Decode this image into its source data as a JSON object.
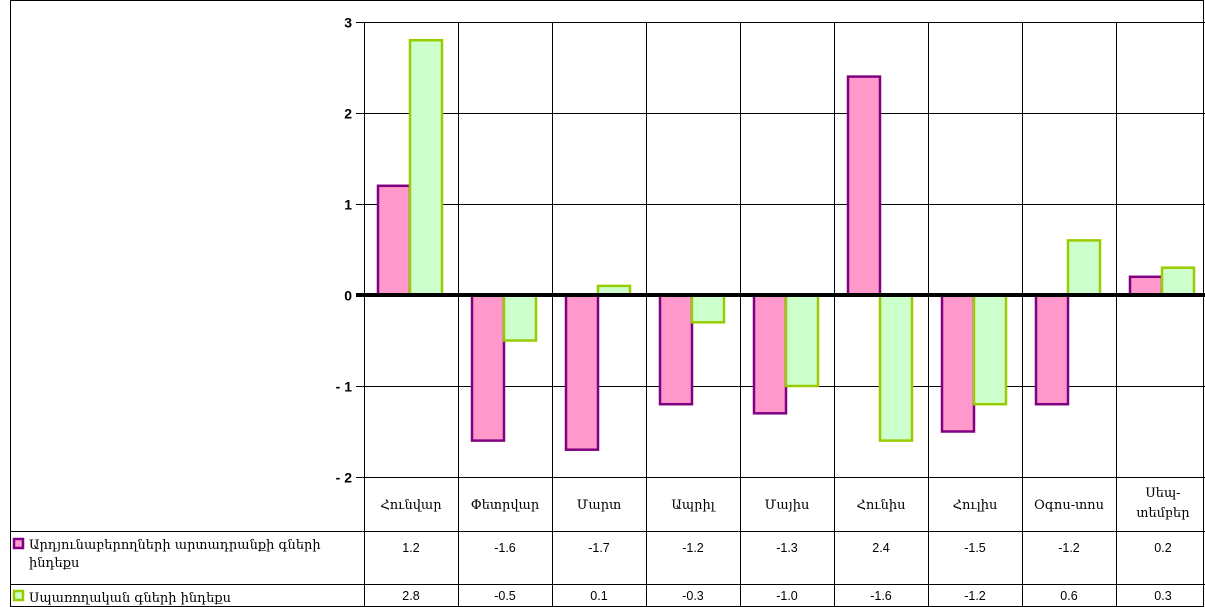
{
  "chart_data": {
    "type": "bar",
    "categories": [
      "Հունվար",
      "Փետրվար",
      "Մարտ",
      "Ապրիլ",
      "Մայիս",
      "Հունիս",
      "Հուլիս",
      "Օգոս-տոս",
      "Սեպ-տեմբեր"
    ],
    "category_lines": [
      [
        "Հունվար"
      ],
      [
        "Փետրվար"
      ],
      [
        "Մարտ"
      ],
      [
        "Ապրիլ"
      ],
      [
        "Մայիս"
      ],
      [
        "Հունիս"
      ],
      [
        "Հուլիս"
      ],
      [
        "Օգոս-տոս"
      ],
      [
        "Սեպ-",
        "տեմբեր"
      ]
    ],
    "series": [
      {
        "name": "Արդյունաբերողների արտադրանքի գների ինդեքս",
        "name_lines": [
          "Արդյունաբերողների արտադրանքի գների",
          "ինդեքս"
        ],
        "values": [
          1.2,
          -1.6,
          -1.7,
          -1.2,
          -1.3,
          2.4,
          -1.5,
          -1.2,
          0.2
        ],
        "labels": [
          "1.2",
          "-1.6",
          "-1.7",
          "-1.2",
          "-1.3",
          "2.4",
          "-1.5",
          "-1.2",
          "0.2"
        ],
        "fill": "#ff99cc",
        "stroke": "#800080"
      },
      {
        "name": "Սպառողական գների ինդեքս",
        "name_lines": [
          "Սպառողական գների ինդեքս"
        ],
        "values": [
          2.8,
          -0.5,
          0.1,
          -0.3,
          -1.0,
          -1.6,
          -1.2,
          0.6,
          0.3
        ],
        "labels": [
          "2.8",
          "-0.5",
          "0.1",
          "-0.3",
          "-1.0",
          "-1.6",
          "-1.2",
          "0.6",
          "0.3"
        ],
        "fill": "#ccffcc",
        "stroke": "#99cc00"
      }
    ],
    "ylim": [
      -2,
      3
    ],
    "yticks": [
      3,
      2,
      1,
      0,
      -1,
      -2
    ],
    "ytick_labels": [
      "3",
      "2",
      "1",
      "0",
      "- 1",
      "- 2"
    ],
    "grid": true,
    "legend": "data-table",
    "title": "",
    "xlabel": "",
    "ylabel": ""
  }
}
